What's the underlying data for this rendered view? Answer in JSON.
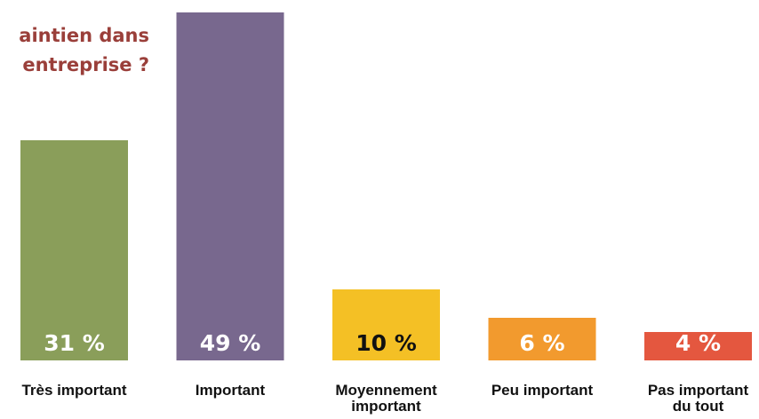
{
  "chart_data": {
    "type": "bar",
    "title_lines": [
      "aintien dans",
      "entreprise ?"
    ],
    "categories": [
      [
        "Très important"
      ],
      [
        "Important"
      ],
      [
        "Moyennement",
        "important"
      ],
      [
        "Peu important"
      ],
      [
        "Pas important",
        "du tout"
      ]
    ],
    "values": [
      31,
      49,
      10,
      6,
      4
    ],
    "value_labels": [
      "31 %",
      "49 %",
      "10 %",
      "6 %",
      "4 %"
    ],
    "colors": [
      "#8a9e5a",
      "#78688e",
      "#f4c025",
      "#f29a2e",
      "#e4573f"
    ],
    "label_colors": [
      "#ffffff",
      "#ffffff",
      "#111111",
      "#ffffff",
      "#ffffff"
    ],
    "unit": "%"
  }
}
